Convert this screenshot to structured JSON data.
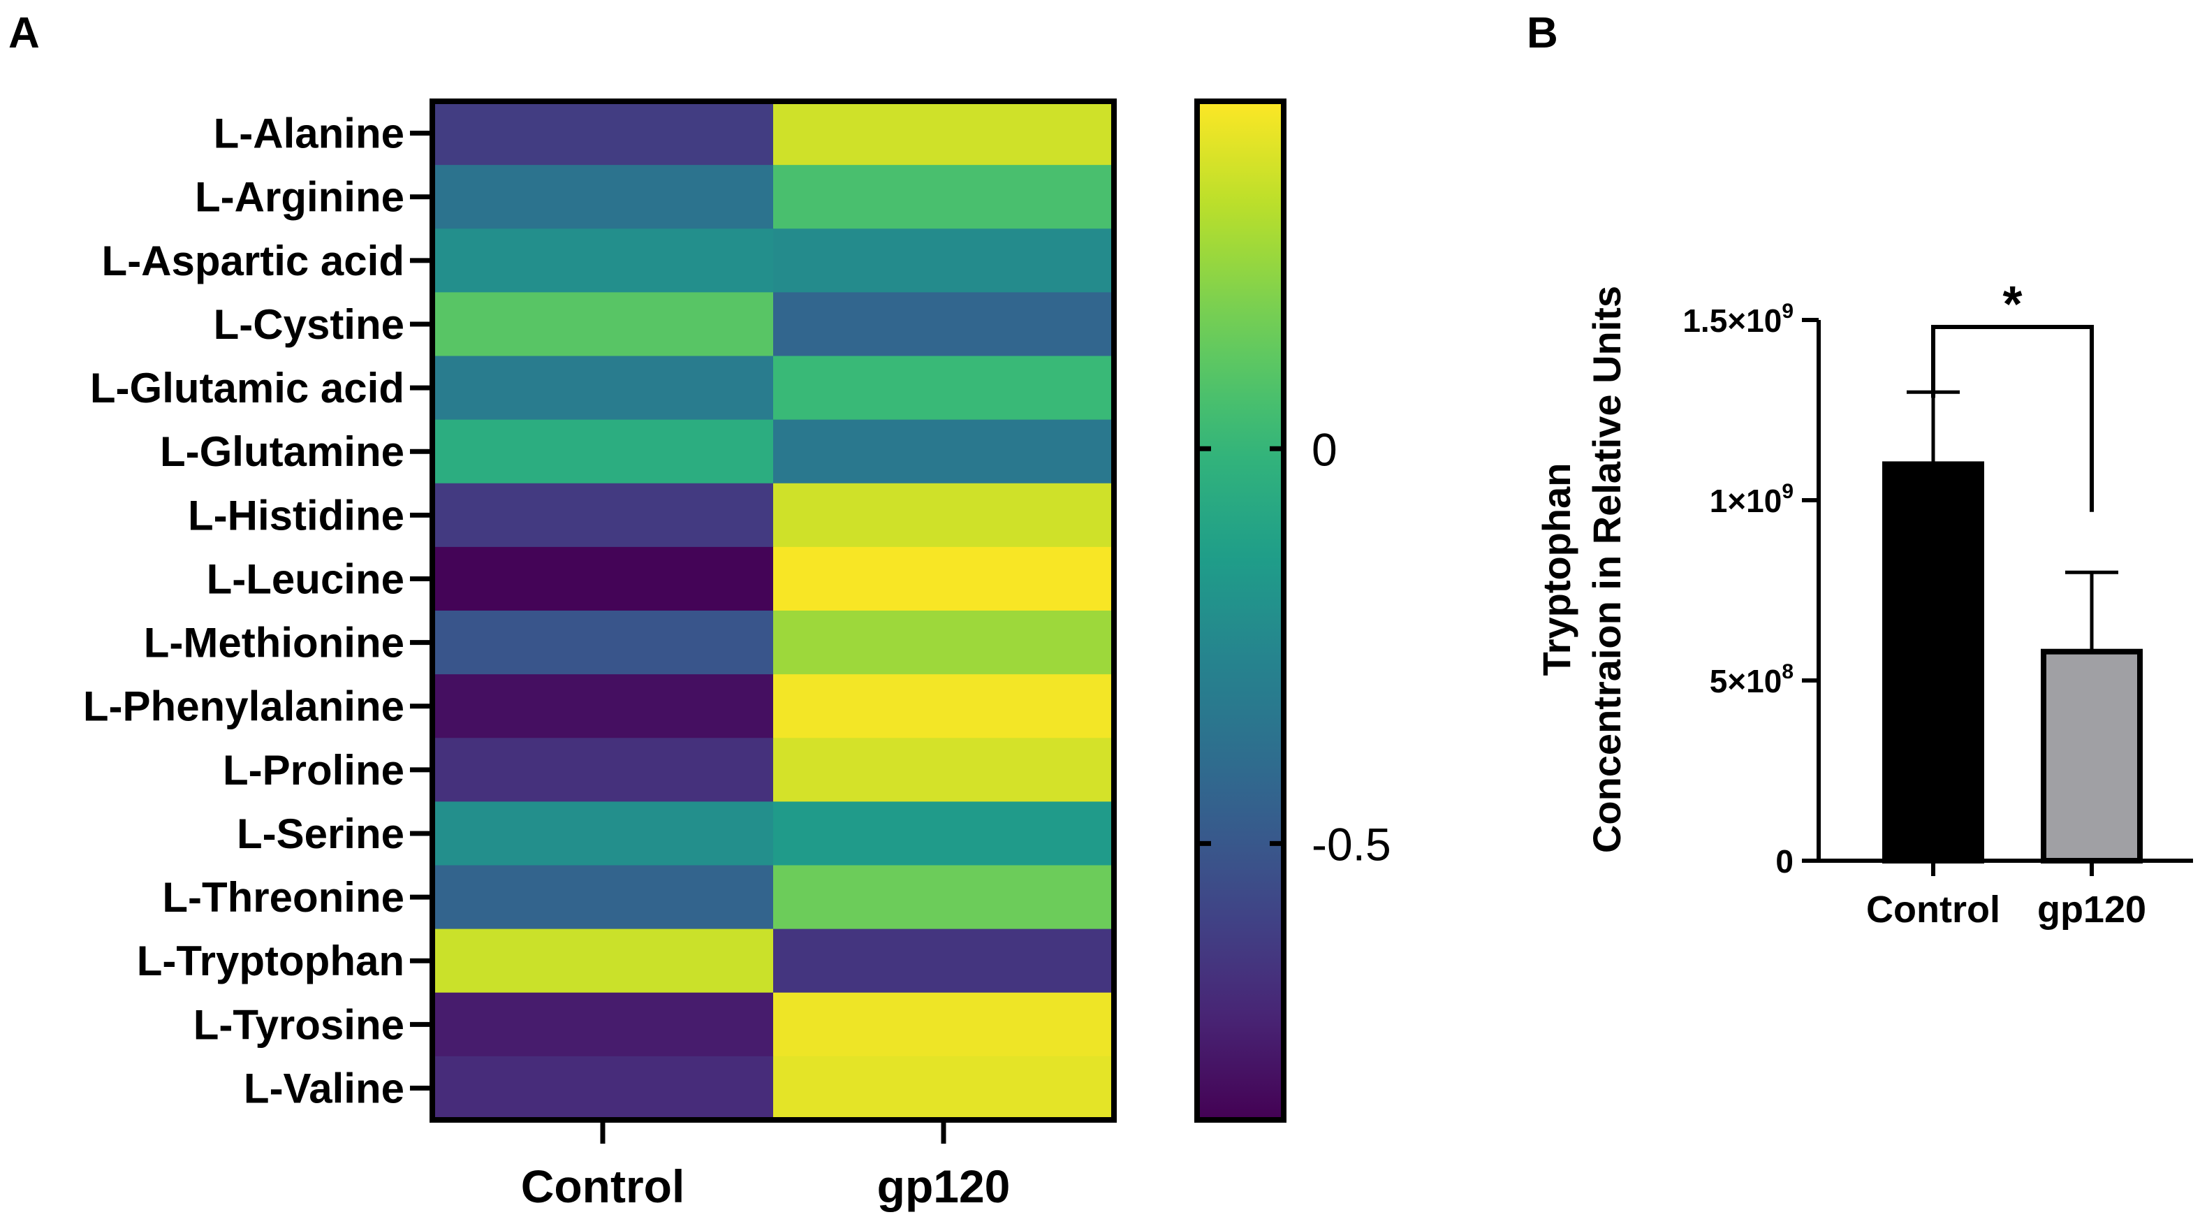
{
  "panels": {
    "a": {
      "label": "A"
    },
    "b": {
      "label": "B"
    }
  },
  "chart_data": [
    {
      "type": "heatmap",
      "title": "",
      "columns": [
        "Control",
        "gp120"
      ],
      "rows": [
        "L-Alanine",
        "L-Arginine",
        "L-Aspartic acid",
        "L-Cystine",
        "L-Glutamic acid",
        "L-Glutamine",
        "L-Histidine",
        "L-Leucine",
        "L-Methionine",
        "L-Phenylalanine",
        "L-Proline",
        "L-Serine",
        "L-Threonine",
        "L-Tryptophan",
        "L-Tyrosine",
        "L-Valine"
      ],
      "values": [
        [
          -0.62,
          0.35
        ],
        [
          -0.36,
          0.06
        ],
        [
          -0.21,
          -0.23
        ],
        [
          0.1,
          -0.43
        ],
        [
          -0.31,
          0.02
        ],
        [
          -0.05,
          -0.33
        ],
        [
          -0.63,
          0.35
        ],
        [
          -0.84,
          0.43
        ],
        [
          -0.51,
          0.25
        ],
        [
          -0.8,
          0.42
        ],
        [
          -0.67,
          0.36
        ],
        [
          -0.21,
          -0.15
        ],
        [
          -0.44,
          0.15
        ],
        [
          0.34,
          -0.65
        ],
        [
          -0.75,
          0.41
        ],
        [
          -0.69,
          0.39
        ]
      ],
      "colorbar": {
        "colormap": "viridis",
        "min": -0.85,
        "max": 0.44,
        "ticks": [
          0,
          -0.5
        ],
        "tick_labels": [
          "0",
          "-0.5"
        ]
      }
    },
    {
      "type": "bar",
      "title": "",
      "categories": [
        "Control",
        "gp120"
      ],
      "values": [
        1100000000,
        580000000
      ],
      "errors": [
        200000000,
        220000000
      ],
      "colors": [
        "#000000",
        "#a0a0a4"
      ],
      "ylabel_line1": "Tryptophan",
      "ylabel_line2": "Concentraion in Relative Units",
      "ylim": [
        0,
        1500000000
      ],
      "yticks": [
        0,
        500000000,
        1000000000,
        1500000000
      ],
      "ytick_labels": [
        {
          "base": "0",
          "exp": ""
        },
        {
          "base": "5×10",
          "exp": "8"
        },
        {
          "base": "1×10",
          "exp": "9"
        },
        {
          "base": "1.5×10",
          "exp": "9"
        }
      ],
      "significance": {
        "pair": [
          "Control",
          "gp120"
        ],
        "label": "*"
      }
    }
  ]
}
